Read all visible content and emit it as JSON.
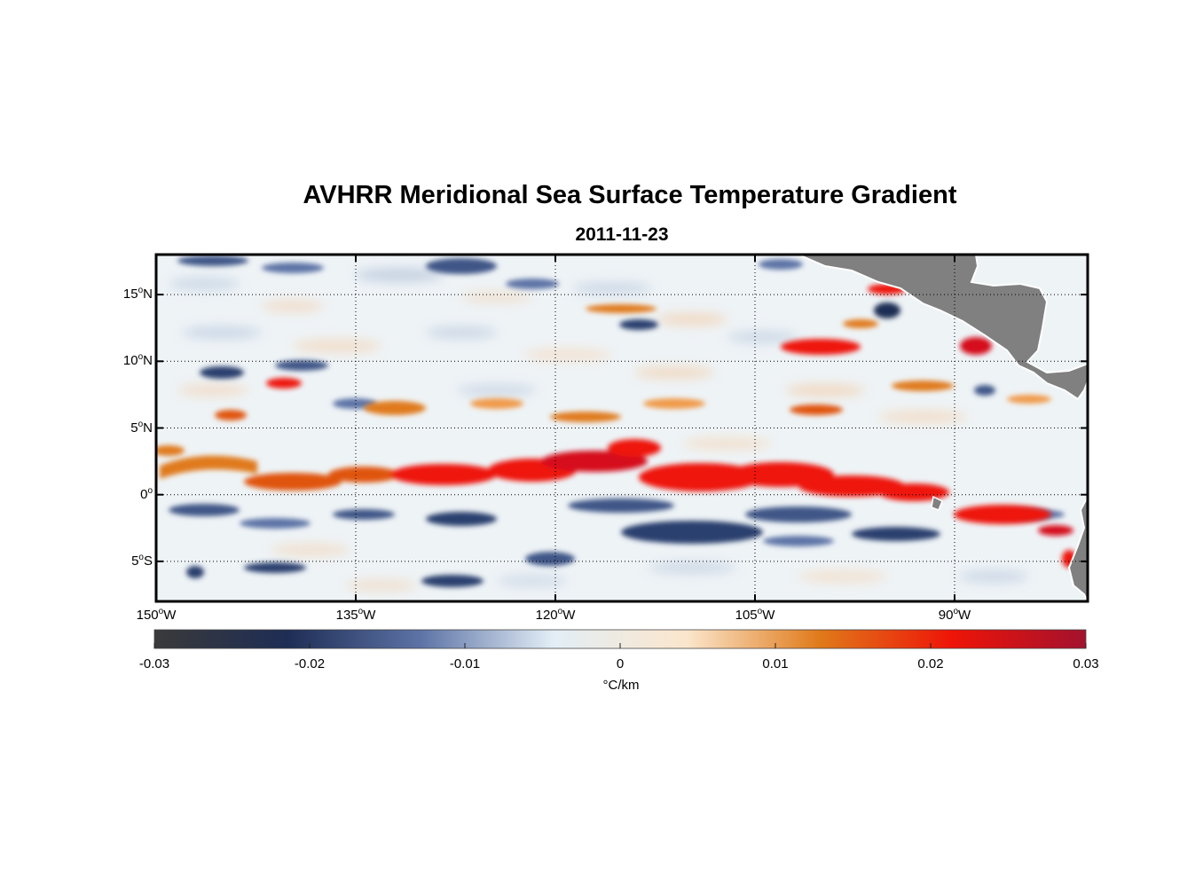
{
  "title": "AVHRR Meridional Sea Surface Temperature Gradient",
  "subtitle": "2011-11-23",
  "map": {
    "lon_range": [
      -150,
      -80
    ],
    "lat_range": [
      -8,
      18
    ],
    "lat_ticks": [
      {
        "value": 15,
        "deg": "15",
        "hemi": "N"
      },
      {
        "value": 10,
        "deg": "10",
        "hemi": "N"
      },
      {
        "value": 5,
        "deg": "5",
        "hemi": "N"
      },
      {
        "value": 0,
        "deg": "0",
        "hemi": ""
      },
      {
        "value": -5,
        "deg": "5",
        "hemi": "S"
      }
    ],
    "lon_ticks": [
      {
        "value": -150,
        "deg": "150",
        "hemi": "W"
      },
      {
        "value": -135,
        "deg": "135",
        "hemi": "W"
      },
      {
        "value": -120,
        "deg": "120",
        "hemi": "W"
      },
      {
        "value": -105,
        "deg": "105",
        "hemi": "W"
      },
      {
        "value": -90,
        "deg": "90",
        "hemi": "W"
      }
    ],
    "land_color": "#808080"
  },
  "colorbar": {
    "range": [
      -0.03,
      0.03
    ],
    "ticks": [
      "-0.03",
      "-0.02",
      "-0.01",
      "0",
      "0.01",
      "0.02",
      "0.03"
    ],
    "unit_label": "°C/km",
    "colors": [
      "#3a3a3a",
      "#1e2d55",
      "#5d73a6",
      "#e3eef6",
      "#fbe6cc",
      "#e07a1a",
      "#ee1408",
      "#a3122e"
    ]
  },
  "gradient_features": [
    {
      "lon": -128,
      "lat": 1.5,
      "value": 0.018
    },
    {
      "lon": -116,
      "lat": 2.5,
      "value": 0.022
    },
    {
      "lon": -105,
      "lat": 1.5,
      "value": 0.02
    },
    {
      "lon": -94,
      "lat": 0.5,
      "value": 0.019
    },
    {
      "lon": -85,
      "lat": -1.5,
      "value": 0.02
    },
    {
      "lon": -100,
      "lat": 11,
      "value": 0.022
    },
    {
      "lon": -140,
      "lat": 0.8,
      "value": 0.011
    },
    {
      "lon": -110,
      "lat": -2,
      "value": -0.02
    },
    {
      "lon": -125,
      "lat": -3,
      "value": -0.016
    },
    {
      "lon": -137,
      "lat": -1.5,
      "value": -0.016
    },
    {
      "lon": -146,
      "lat": -1.0,
      "value": -0.015
    },
    {
      "lon": -143,
      "lat": 8.8,
      "value": -0.017
    },
    {
      "lon": -130,
      "lat": 18,
      "value": -0.015
    },
    {
      "lon": -135,
      "lat": 6,
      "value": 0.012
    }
  ]
}
